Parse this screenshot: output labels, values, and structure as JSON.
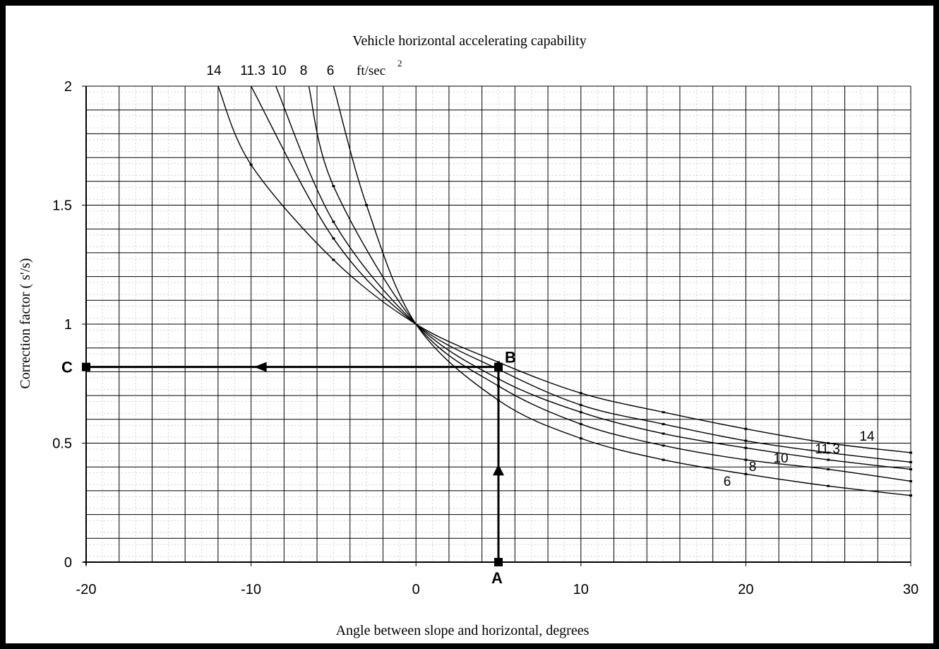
{
  "chart_data": {
    "type": "line",
    "title": "Vehicle horizontal accelerating capability",
    "units_label": "ft/sec",
    "units_superscript": "2",
    "xlabel": "Angle between slope and horizontal, degrees",
    "ylabel": "Correction factor ( s'/s)",
    "xlim": [
      -20,
      30
    ],
    "ylim": [
      0,
      2
    ],
    "x_ticks": [
      "-20",
      "-10",
      "0",
      "10",
      "20",
      "30"
    ],
    "y_ticks": [
      "0",
      "0.5",
      "1",
      "1.5",
      "2"
    ],
    "grid": true,
    "top_labels": [
      "14",
      "11.3",
      "10",
      "8",
      "6"
    ],
    "series": [
      {
        "name": "14",
        "end_label": "14",
        "x": [
          -12,
          -10,
          -5,
          0,
          5,
          10,
          15,
          20,
          25,
          30
        ],
        "y": [
          2.0,
          1.67,
          1.27,
          1.0,
          0.84,
          0.71,
          0.63,
          0.56,
          0.5,
          0.46
        ]
      },
      {
        "name": "11.3",
        "end_label": "11.3",
        "x": [
          -10,
          -5,
          0,
          5,
          10,
          15,
          20,
          25,
          30
        ],
        "y": [
          2.0,
          1.36,
          1.0,
          0.81,
          0.66,
          0.58,
          0.51,
          0.46,
          0.42
        ]
      },
      {
        "name": "10",
        "end_label": "10",
        "x": [
          -8.5,
          -5,
          0,
          5,
          10,
          15,
          20,
          25,
          30
        ],
        "y": [
          2.0,
          1.43,
          1.0,
          0.77,
          0.63,
          0.54,
          0.48,
          0.43,
          0.39
        ]
      },
      {
        "name": "8",
        "end_label": "8",
        "x": [
          -6.5,
          -5,
          0,
          5,
          10,
          15,
          20,
          25,
          30
        ],
        "y": [
          2.0,
          1.58,
          1.0,
          0.74,
          0.58,
          0.49,
          0.43,
          0.39,
          0.34
        ]
      },
      {
        "name": "6",
        "end_label": "6",
        "x": [
          -5,
          -3,
          0,
          5,
          10,
          15,
          20,
          25,
          30
        ],
        "y": [
          2.0,
          1.5,
          1.0,
          0.68,
          0.52,
          0.43,
          0.37,
          0.32,
          0.28
        ]
      }
    ],
    "annotations": {
      "A": {
        "label": "A",
        "x": 5,
        "y": 0
      },
      "B": {
        "label": "B",
        "x": 5,
        "y": 0.82
      },
      "C": {
        "label": "C",
        "x": -20,
        "y": 0.82
      }
    }
  }
}
